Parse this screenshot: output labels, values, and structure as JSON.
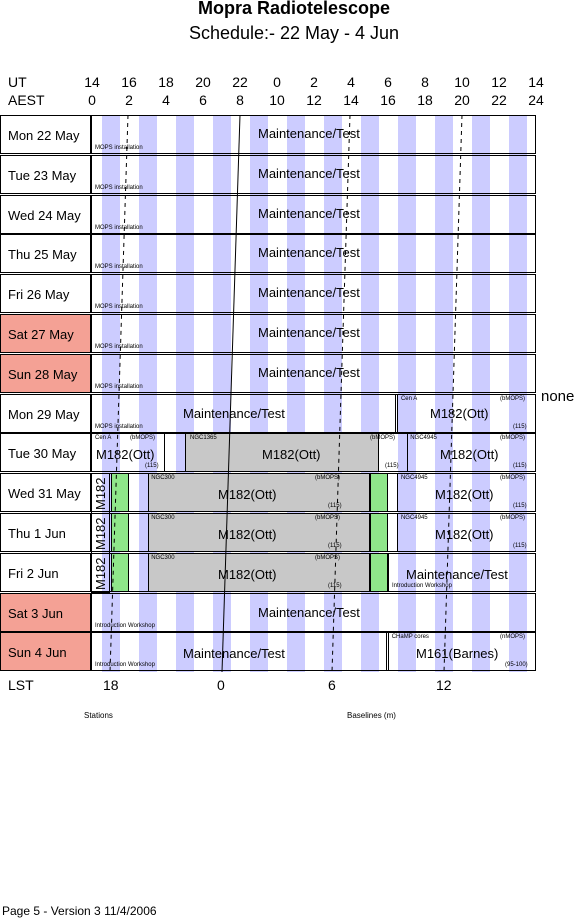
{
  "title": "Mopra Radiotelescope",
  "subtitle": "Schedule:- 22 May - 4  Jun",
  "header": {
    "ut_label": "UT",
    "aest_label": "AEST",
    "ut_ticks": [
      "14",
      "16",
      "18",
      "20",
      "22",
      "0",
      "2",
      "4",
      "6",
      "8",
      "10",
      "12",
      "14"
    ],
    "aest_ticks": [
      "0",
      "2",
      "4",
      "6",
      "8",
      "10",
      "12",
      "14",
      "16",
      "18",
      "20",
      "22",
      "24"
    ]
  },
  "days": [
    {
      "label": "Mon  22 May",
      "weekend": false
    },
    {
      "label": "Tue   23 May",
      "weekend": false
    },
    {
      "label": "Wed  24 May",
      "weekend": false
    },
    {
      "label": "Thu   25 May",
      "weekend": false
    },
    {
      "label": "Fri     26 May",
      "weekend": false
    },
    {
      "label": "Sat   27 May",
      "weekend": true
    },
    {
      "label": "Sun  28 May",
      "weekend": true
    },
    {
      "label": "Mon  29 May",
      "weekend": false
    },
    {
      "label": "Tue   30 May",
      "weekend": false
    },
    {
      "label": "Wed  31 May",
      "weekend": false
    },
    {
      "label": "Thu    1  Jun",
      "weekend": false
    },
    {
      "label": "Fri      2  Jun",
      "weekend": false
    },
    {
      "label": "Sat    3  Jun",
      "weekend": true
    },
    {
      "label": "Sun   4  Jun",
      "weekend": true
    }
  ],
  "text": {
    "maint": "Maintenance/Test",
    "mops_install": "MOPS installation",
    "intro_workshop": "Introduction Workshop",
    "cen_a": "Cen A",
    "bmops": "(bMOPS)",
    "nmops": "(nMOPS)",
    "n115": "(115)",
    "n95_100": "(95-100)",
    "m182": "M182(Ott)",
    "m161": "M161(Barnes)",
    "m182_short": "M182",
    "ngc1365": "NGC1365",
    "ngc4945": "NGC4945",
    "ngc300": "NGC300",
    "champ": "CHaMP cores",
    "none": "none"
  },
  "lst": {
    "label": "LST",
    "ticks": [
      "18",
      "0",
      "6",
      "12"
    ]
  },
  "footer": {
    "stations": "Stations",
    "baselines": "Baselines (m)",
    "version": "Page 5 - Version 3  11/4/2006"
  }
}
